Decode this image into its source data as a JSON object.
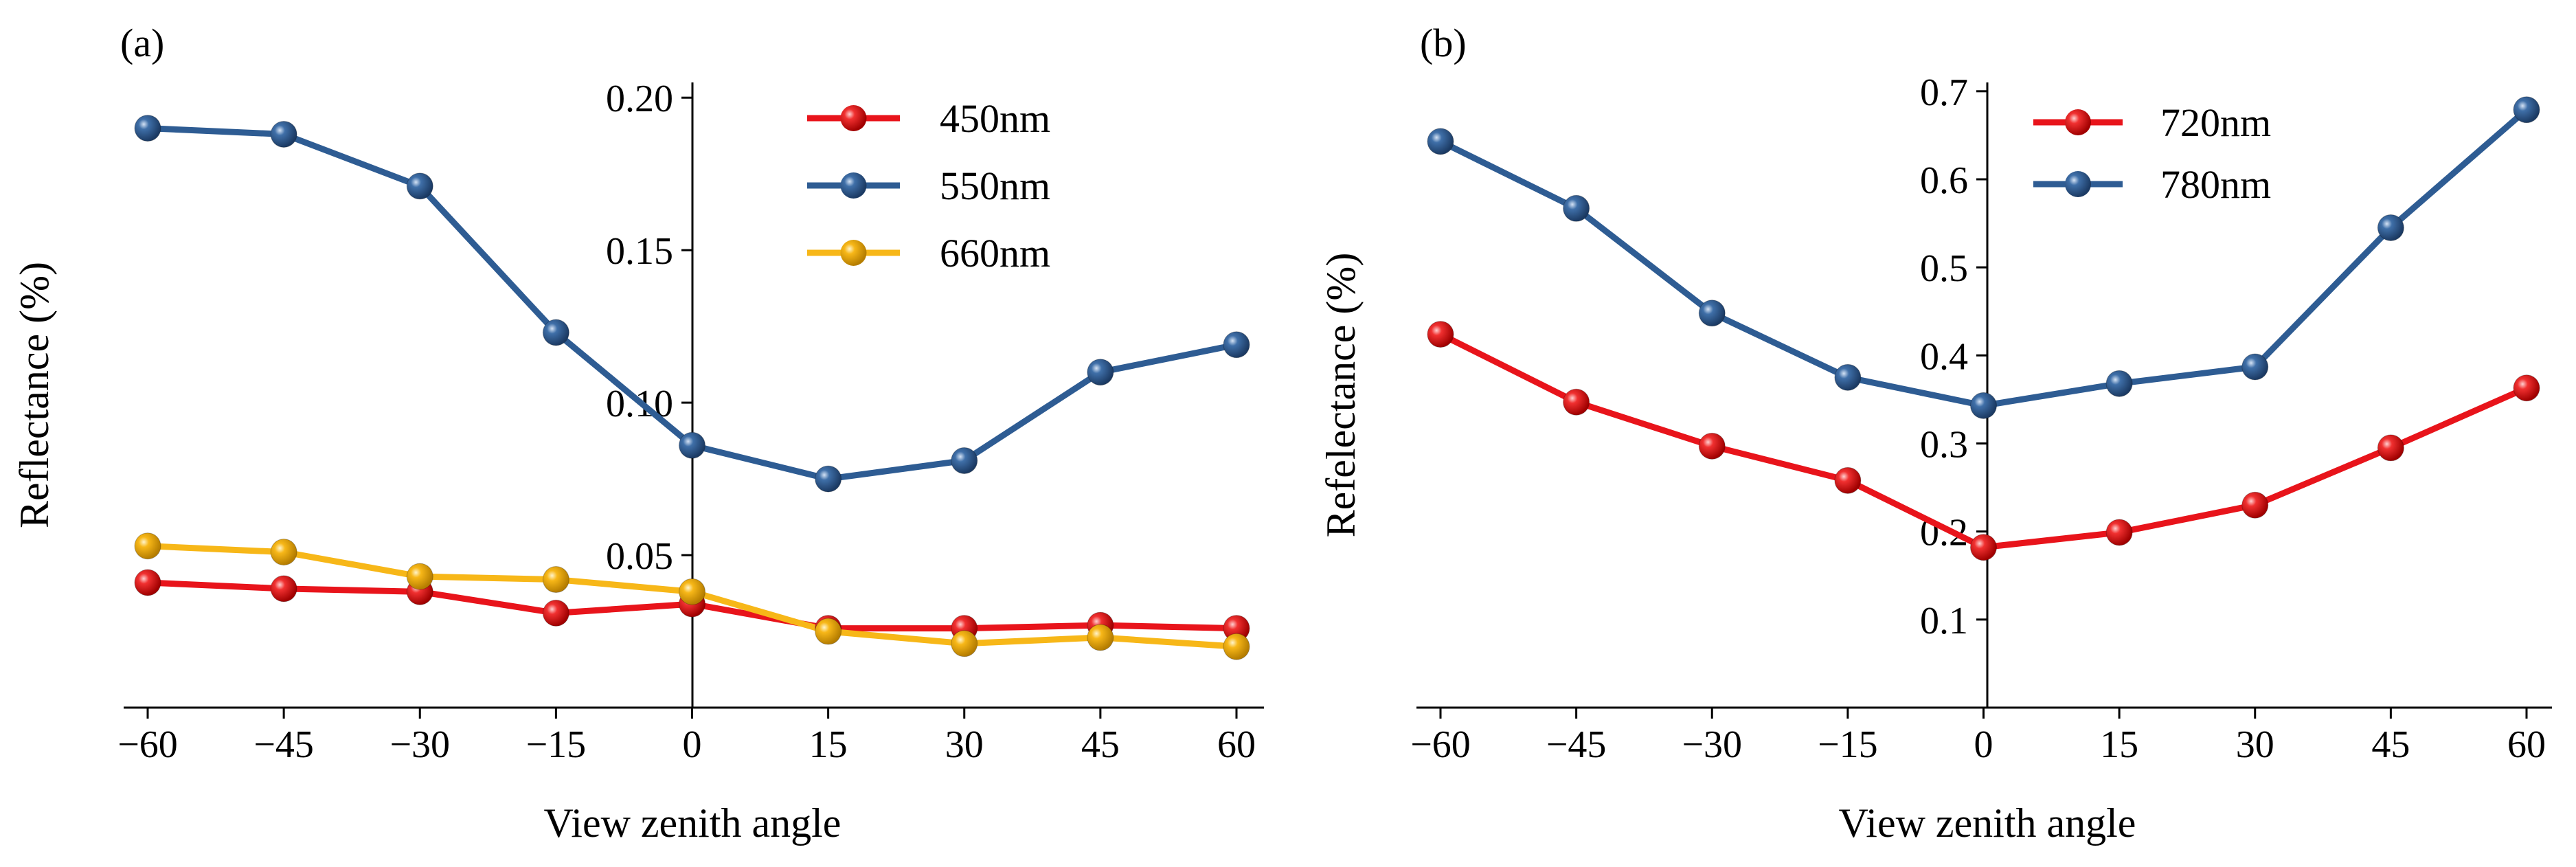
{
  "chart_data": [
    {
      "panel_label": "(a)",
      "type": "line",
      "xlabel": "View zenith angle",
      "ylabel": "Reflectance (%)",
      "x": [
        -60,
        -45,
        -30,
        -15,
        0,
        15,
        30,
        45,
        60
      ],
      "x_tick_labels": [
        "−60",
        "−45",
        "−30",
        "−15",
        "0",
        "15",
        "30",
        "45",
        "60"
      ],
      "y_ticks": [
        0.05,
        0.1,
        0.15,
        0.2
      ],
      "y_tick_labels": [
        "0.05",
        "0.10",
        "0.15",
        "0.20"
      ],
      "xlim": [
        -62,
        62
      ],
      "ylim": [
        0.0,
        0.205
      ],
      "legend_position": "top-right",
      "series": [
        {
          "name": "450nm",
          "color": "#e8141b",
          "values": [
            0.041,
            0.039,
            0.038,
            0.031,
            0.034,
            0.026,
            0.026,
            0.027,
            0.026
          ]
        },
        {
          "name": "550nm",
          "color": "#2e5c93",
          "values": [
            0.19,
            0.188,
            0.171,
            0.123,
            0.086,
            0.075,
            0.081,
            0.11,
            0.119
          ]
        },
        {
          "name": "660nm",
          "color": "#f7b718",
          "values": [
            0.053,
            0.051,
            0.043,
            0.042,
            0.038,
            0.025,
            0.021,
            0.023,
            0.02
          ]
        }
      ]
    },
    {
      "panel_label": "(b)",
      "type": "line",
      "xlabel": "View zenith angle",
      "ylabel": "Refelectance (%)",
      "x": [
        -60,
        -45,
        -30,
        -15,
        0,
        15,
        30,
        45,
        60
      ],
      "x_tick_labels": [
        "−60",
        "−45",
        "−30",
        "−15",
        "0",
        "15",
        "30",
        "45",
        "60"
      ],
      "y_ticks": [
        0.1,
        0.2,
        0.3,
        0.4,
        0.5,
        0.6,
        0.7
      ],
      "y_tick_labels": [
        "0.1",
        "0.2",
        "0.3",
        "0.4",
        "0.5",
        "0.6",
        "0.7"
      ],
      "xlim": [
        -62,
        62
      ],
      "ylim": [
        0.0,
        0.71
      ],
      "legend_position": "top-left",
      "series": [
        {
          "name": "720nm",
          "color": "#e8141b",
          "values": [
            0.424,
            0.347,
            0.297,
            0.258,
            0.182,
            0.199,
            0.23,
            0.295,
            0.363
          ]
        },
        {
          "name": "780nm",
          "color": "#2e5c93",
          "values": [
            0.643,
            0.567,
            0.448,
            0.375,
            0.343,
            0.368,
            0.387,
            0.545,
            0.679
          ]
        }
      ]
    }
  ]
}
